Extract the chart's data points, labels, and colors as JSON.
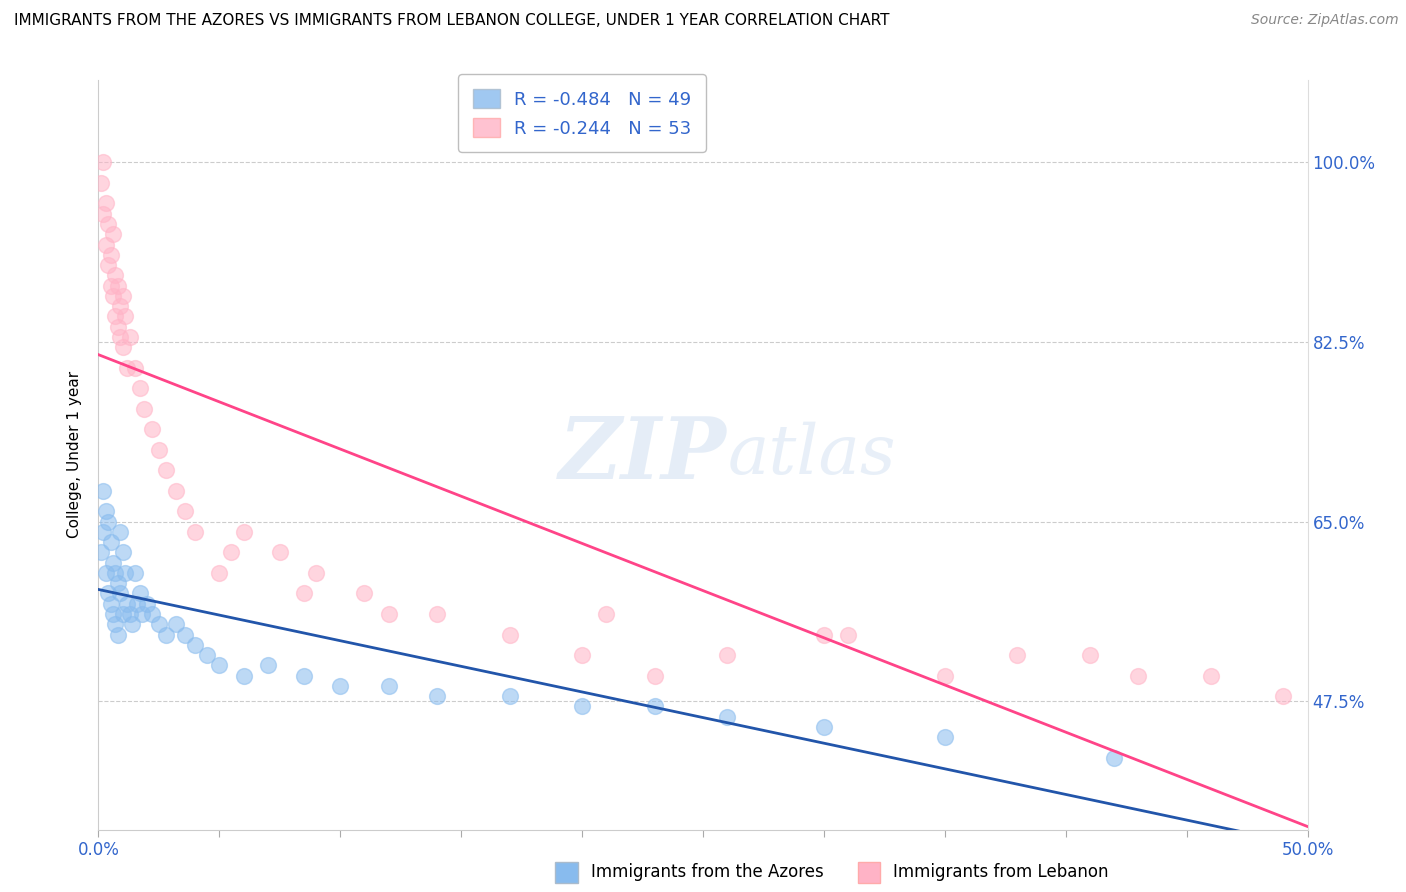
{
  "title": "IMMIGRANTS FROM THE AZORES VS IMMIGRANTS FROM LEBANON COLLEGE, UNDER 1 YEAR CORRELATION CHART",
  "source": "Source: ZipAtlas.com",
  "ylabel": "College, Under 1 year",
  "xlim": [
    0.0,
    0.5
  ],
  "ylim": [
    0.35,
    1.08
  ],
  "yticks": [
    0.475,
    0.65,
    0.825,
    1.0
  ],
  "right_ytick_labels": [
    "47.5%",
    "65.0%",
    "82.5%",
    "100.0%"
  ],
  "legend_r_azores": "R = -0.484",
  "legend_n_azores": "N = 49",
  "legend_r_lebanon": "R = -0.244",
  "legend_n_lebanon": "N = 53",
  "color_azores": "#88BBEE",
  "color_lebanon": "#FFB3C6",
  "color_azores_line": "#2255AA",
  "color_lebanon_line": "#FF4488",
  "watermark_zip": "ZIP",
  "watermark_atlas": "atlas",
  "azores_x": [
    0.001,
    0.002,
    0.002,
    0.003,
    0.003,
    0.004,
    0.004,
    0.005,
    0.005,
    0.006,
    0.006,
    0.007,
    0.007,
    0.008,
    0.008,
    0.009,
    0.009,
    0.01,
    0.01,
    0.011,
    0.012,
    0.013,
    0.014,
    0.015,
    0.016,
    0.017,
    0.018,
    0.02,
    0.022,
    0.025,
    0.028,
    0.032,
    0.036,
    0.04,
    0.045,
    0.05,
    0.06,
    0.07,
    0.085,
    0.1,
    0.12,
    0.14,
    0.17,
    0.2,
    0.23,
    0.26,
    0.3,
    0.35,
    0.42
  ],
  "azores_y": [
    0.62,
    0.68,
    0.64,
    0.66,
    0.6,
    0.65,
    0.58,
    0.63,
    0.57,
    0.61,
    0.56,
    0.6,
    0.55,
    0.59,
    0.54,
    0.64,
    0.58,
    0.62,
    0.56,
    0.6,
    0.57,
    0.56,
    0.55,
    0.6,
    0.57,
    0.58,
    0.56,
    0.57,
    0.56,
    0.55,
    0.54,
    0.55,
    0.54,
    0.53,
    0.52,
    0.51,
    0.5,
    0.51,
    0.5,
    0.49,
    0.49,
    0.48,
    0.48,
    0.47,
    0.47,
    0.46,
    0.45,
    0.44,
    0.42
  ],
  "lebanon_x": [
    0.001,
    0.002,
    0.002,
    0.003,
    0.003,
    0.004,
    0.004,
    0.005,
    0.005,
    0.006,
    0.006,
    0.007,
    0.007,
    0.008,
    0.008,
    0.009,
    0.009,
    0.01,
    0.01,
    0.011,
    0.012,
    0.013,
    0.015,
    0.017,
    0.019,
    0.022,
    0.025,
    0.028,
    0.032,
    0.036,
    0.04,
    0.05,
    0.06,
    0.075,
    0.09,
    0.11,
    0.14,
    0.17,
    0.2,
    0.23,
    0.26,
    0.3,
    0.35,
    0.41,
    0.46,
    0.49,
    0.21,
    0.31,
    0.38,
    0.43,
    0.055,
    0.085,
    0.12
  ],
  "lebanon_y": [
    0.98,
    1.0,
    0.95,
    0.96,
    0.92,
    0.94,
    0.9,
    0.91,
    0.88,
    0.93,
    0.87,
    0.89,
    0.85,
    0.88,
    0.84,
    0.86,
    0.83,
    0.87,
    0.82,
    0.85,
    0.8,
    0.83,
    0.8,
    0.78,
    0.76,
    0.74,
    0.72,
    0.7,
    0.68,
    0.66,
    0.64,
    0.6,
    0.64,
    0.62,
    0.6,
    0.58,
    0.56,
    0.54,
    0.52,
    0.5,
    0.52,
    0.54,
    0.5,
    0.52,
    0.5,
    0.48,
    0.56,
    0.54,
    0.52,
    0.5,
    0.62,
    0.58,
    0.56
  ]
}
